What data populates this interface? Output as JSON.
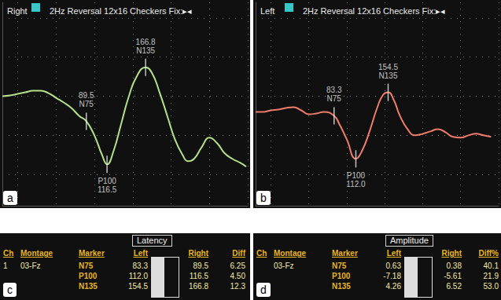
{
  "chart_data": [
    {
      "type": "line",
      "title": "Right",
      "subtitle": "2Hz Reversal 12x16 Checkers Fix:▸◂",
      "x": [
        -20,
        -10,
        0,
        10,
        20,
        30,
        40,
        50,
        60,
        70,
        80,
        89.5,
        100,
        110,
        116.5,
        125,
        135,
        145,
        155,
        166.8,
        175,
        185,
        195,
        205,
        215,
        222,
        230,
        240,
        250,
        260,
        270,
        280,
        290,
        298
      ],
      "values": [
        0,
        0.1,
        0.3,
        0.5,
        0.7,
        0.7,
        0.4,
        -0.2,
        -0.8,
        -1.5,
        -2.5,
        -3.2,
        -5.0,
        -7.5,
        -8.7,
        -7.0,
        -3.5,
        0,
        2.5,
        3.7,
        3.0,
        0.5,
        -2.5,
        -5.5,
        -7.5,
        -8.3,
        -8.0,
        -6.5,
        -5.3,
        -6.0,
        -7.3,
        -8.0,
        -8.5,
        -9.0
      ],
      "color": "#b5e08a",
      "xlim": [
        -20,
        300
      ],
      "xticks": [
        0,
        50,
        100,
        150,
        200,
        250,
        300
      ],
      "ylim": [
        -14,
        12
      ],
      "yticks": [
        -10,
        -5,
        0,
        5,
        10
      ],
      "grid": true,
      "tick_labels": false,
      "annotations": [
        {
          "text": "N75",
          "x": 89.5,
          "y": -3.2
        },
        {
          "text": "P100",
          "x": 116.5,
          "y": -8.7
        },
        {
          "text": "N135",
          "x": 166.8,
          "y": 3.7
        }
      ]
    },
    {
      "type": "line",
      "title": "Left",
      "subtitle": "2Hz Reversal 12x16 Checkers Fix:▸◂",
      "x": [
        -20,
        -10,
        0,
        10,
        20,
        30,
        40,
        50,
        60,
        70,
        83.3,
        90,
        100,
        112,
        120,
        130,
        140,
        148,
        154.5,
        162,
        170,
        180,
        190,
        200,
        210,
        220,
        230,
        240,
        250,
        260,
        270,
        280,
        290
      ],
      "values": [
        -2.0,
        -2.0,
        -1.8,
        -1.7,
        -1.5,
        -1.4,
        -1.8,
        -2.3,
        -2.2,
        -2.0,
        -2.5,
        -3.5,
        -5.5,
        -8.0,
        -7.0,
        -4.5,
        -1.5,
        0.2,
        0.5,
        -0.5,
        -2.5,
        -4.2,
        -5.0,
        -4.8,
        -4.5,
        -4.2,
        -4.6,
        -5.2,
        -5.3,
        -5.0,
        -4.8,
        -5.0,
        -5.2
      ],
      "color": "#f07c6c",
      "xlim": [
        -20,
        300
      ],
      "xticks": [
        0,
        50,
        100,
        150,
        200,
        250,
        300
      ],
      "ylim": [
        -14,
        12
      ],
      "yticks": [
        -10,
        -5,
        0,
        5,
        10
      ],
      "grid": true,
      "tick_labels": false,
      "annotations": [
        {
          "text": "N75",
          "x": 83.3,
          "y": -2.5
        },
        {
          "text": "P100",
          "x": 112.0,
          "y": -8.0
        },
        {
          "text": "N135",
          "x": 154.5,
          "y": 0.5
        }
      ]
    }
  ],
  "panel_labels": [
    "a",
    "b",
    "c",
    "d"
  ],
  "tables": [
    {
      "title": "Latency",
      "columns": [
        "Ch",
        "Montage",
        "Marker",
        "Left",
        "Right",
        "Diff"
      ],
      "rows": [
        [
          "1",
          "03-Fz",
          "N75",
          "83.3",
          "89.5",
          "6.25"
        ],
        [
          null,
          null,
          "P100",
          "112.0",
          "116.5",
          "4.50"
        ],
        [
          null,
          null,
          "N135",
          "154.5",
          "166.8",
          "12.3"
        ]
      ]
    },
    {
      "title": "Amplitude",
      "columns": [
        "Ch",
        "Montage",
        "Marker",
        "Left",
        "Right",
        "Diff%"
      ],
      "rows": [
        [
          null,
          "03-Fz",
          "N75",
          "0.63",
          "0.38",
          "40.1"
        ],
        [
          null,
          null,
          "P100",
          "-7.18",
          "-5.61",
          "21.9"
        ],
        [
          null,
          null,
          "N135",
          "4.26",
          "6.52",
          "53.0"
        ]
      ]
    }
  ]
}
